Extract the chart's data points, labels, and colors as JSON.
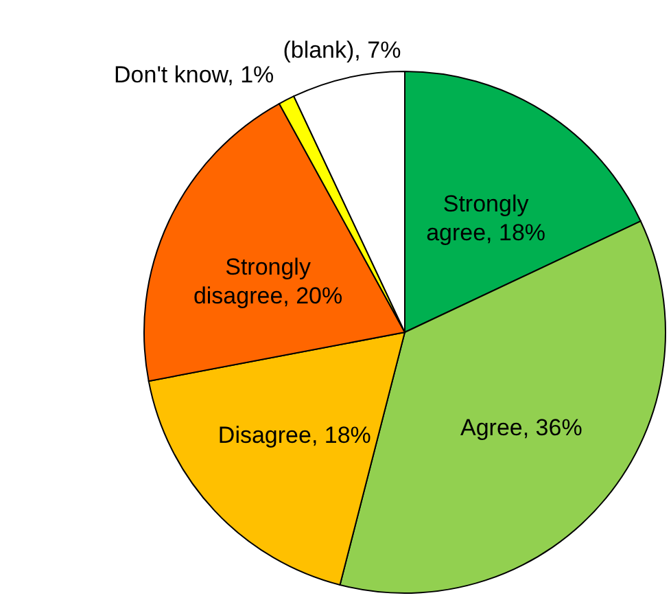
{
  "chart_data": {
    "type": "pie",
    "categories": [
      "Strongly agree",
      "Agree",
      "Disagree",
      "Strongly disagree",
      "Don't know",
      "(blank)"
    ],
    "values": [
      18,
      36,
      18,
      20,
      1,
      7
    ],
    "colors": [
      "#00b050",
      "#92d050",
      "#ffc000",
      "#ff6600",
      "#ffff00",
      "#ffffff"
    ],
    "value_labels": [
      "18%",
      "36%",
      "18%",
      "20%",
      "1%",
      "7%"
    ]
  }
}
